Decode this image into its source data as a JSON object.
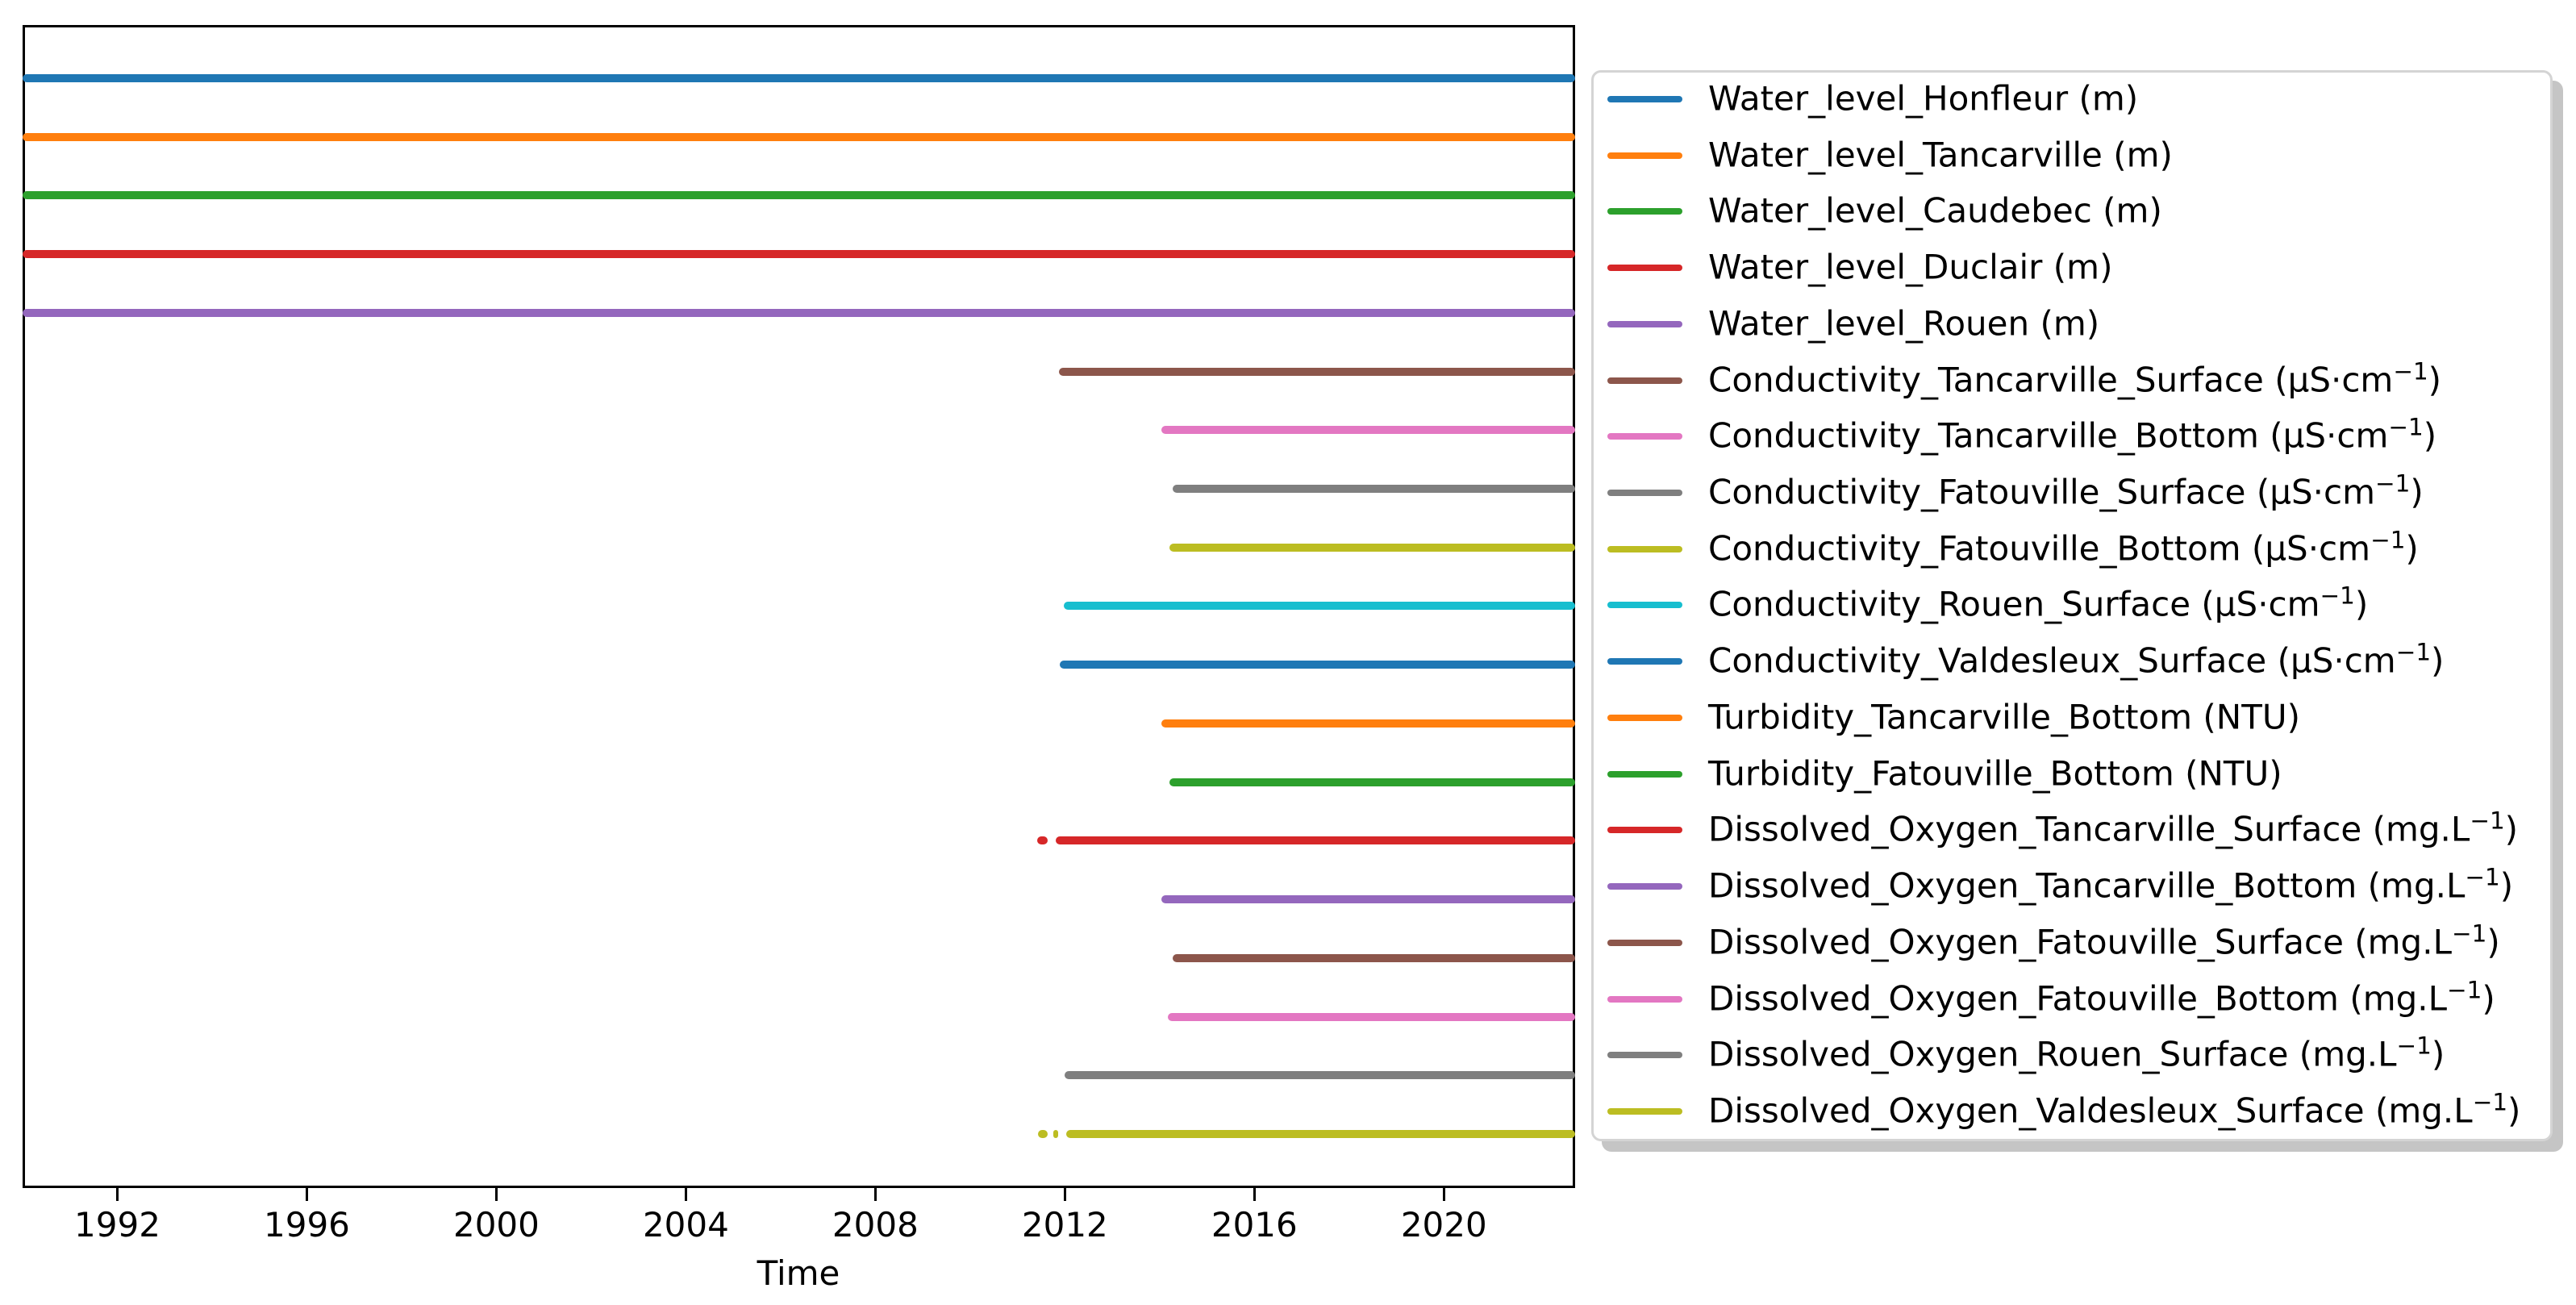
{
  "chart_data": {
    "type": "line",
    "subtype": "data-availability-timeline",
    "title": "",
    "xlabel": "Time",
    "ylabel": "",
    "xlim": [
      1990.0,
      2022.77
    ],
    "x_ticks": [
      1992,
      1996,
      2000,
      2004,
      2008,
      2012,
      2016,
      2020
    ],
    "grid": false,
    "legend_position": "right-outside",
    "axis_color": "#000000",
    "legend_border_color": "#d4d4d4",
    "series": [
      {
        "name": "Water_level_Honfleur (m)",
        "unit": "m",
        "color": "#1f77b4",
        "segments": [
          [
            1990.0,
            2022.77
          ]
        ]
      },
      {
        "name": "Water_level_Tancarville (m)",
        "unit": "m",
        "color": "#ff7f0e",
        "segments": [
          [
            1990.0,
            2022.77
          ]
        ]
      },
      {
        "name": "Water_level_Caudebec (m)",
        "unit": "m",
        "color": "#2ca02c",
        "segments": [
          [
            1990.0,
            2022.77
          ]
        ]
      },
      {
        "name": "Water_level_Duclair (m)",
        "unit": "m",
        "color": "#d62728",
        "segments": [
          [
            1990.0,
            2022.77
          ]
        ]
      },
      {
        "name": "Water_level_Rouen (m)",
        "unit": "m",
        "color": "#9467bd",
        "segments": [
          [
            1990.0,
            2022.77
          ]
        ]
      },
      {
        "name": "Conductivity_Tancarville_Surface (μS·cm⁻¹)",
        "unit": "μS·cm⁻¹",
        "color": "#8c564b",
        "segments": [
          [
            2011.88,
            2022.77
          ]
        ]
      },
      {
        "name": "Conductivity_Tancarville_Bottom (μS·cm⁻¹)",
        "unit": "μS·cm⁻¹",
        "color": "#e377c2",
        "segments": [
          [
            2014.03,
            2022.77
          ]
        ]
      },
      {
        "name": "Conductivity_Fatouville_Surface (μS·cm⁻¹)",
        "unit": "μS·cm⁻¹",
        "color": "#7f7f7f",
        "segments": [
          [
            2014.28,
            2022.77
          ]
        ]
      },
      {
        "name": "Conductivity_Fatouville_Bottom (μS·cm⁻¹)",
        "unit": "μS·cm⁻¹",
        "color": "#bcbd22",
        "segments": [
          [
            2014.2,
            2022.77
          ]
        ]
      },
      {
        "name": "Conductivity_Rouen_Surface (μS·cm⁻¹)",
        "unit": "μS·cm⁻¹",
        "color": "#17becf",
        "segments": [
          [
            2011.98,
            2022.77
          ]
        ]
      },
      {
        "name": "Conductivity_Valdesleux_Surface (μS·cm⁻¹)",
        "unit": "μS·cm⁻¹",
        "color": "#1f77b4",
        "segments": [
          [
            2011.9,
            2022.77
          ]
        ]
      },
      {
        "name": "Turbidity_Tancarville_Bottom (NTU)",
        "unit": "NTU",
        "color": "#ff7f0e",
        "segments": [
          [
            2014.04,
            2022.77
          ]
        ]
      },
      {
        "name": "Turbidity_Fatouville_Bottom (NTU)",
        "unit": "NTU",
        "color": "#2ca02c",
        "segments": [
          [
            2014.21,
            2022.77
          ]
        ]
      },
      {
        "name": "Dissolved_Oxygen_Tancarville_Surface (mg.L⁻¹)",
        "unit": "mg.L⁻¹",
        "color": "#d62728",
        "segments": [
          [
            2011.42,
            2011.64
          ],
          [
            2011.8,
            2022.77
          ]
        ]
      },
      {
        "name": "Dissolved_Oxygen_Tancarville_Bottom (mg.L⁻¹)",
        "unit": "mg.L⁻¹",
        "color": "#9467bd",
        "segments": [
          [
            2014.03,
            2022.77
          ]
        ]
      },
      {
        "name": "Dissolved_Oxygen_Fatouville_Surface (mg.L⁻¹)",
        "unit": "mg.L⁻¹",
        "color": "#8c564b",
        "segments": [
          [
            2014.28,
            2022.77
          ]
        ]
      },
      {
        "name": "Dissolved_Oxygen_Fatouville_Bottom (mg.L⁻¹)",
        "unit": "mg.L⁻¹",
        "color": "#e377c2",
        "segments": [
          [
            2014.18,
            2022.77
          ]
        ]
      },
      {
        "name": "Dissolved_Oxygen_Rouen_Surface (mg.L⁻¹)",
        "unit": "mg.L⁻¹",
        "color": "#7f7f7f",
        "segments": [
          [
            2012.0,
            2022.77
          ]
        ]
      },
      {
        "name": "Dissolved_Oxygen_Valdesleux_Surface (mg.L⁻¹)",
        "unit": "mg.L⁻¹",
        "color": "#bcbd22",
        "segments": [
          [
            2011.44,
            2011.63
          ],
          [
            2011.76,
            2011.86
          ],
          [
            2012.03,
            2022.77
          ]
        ]
      }
    ]
  }
}
